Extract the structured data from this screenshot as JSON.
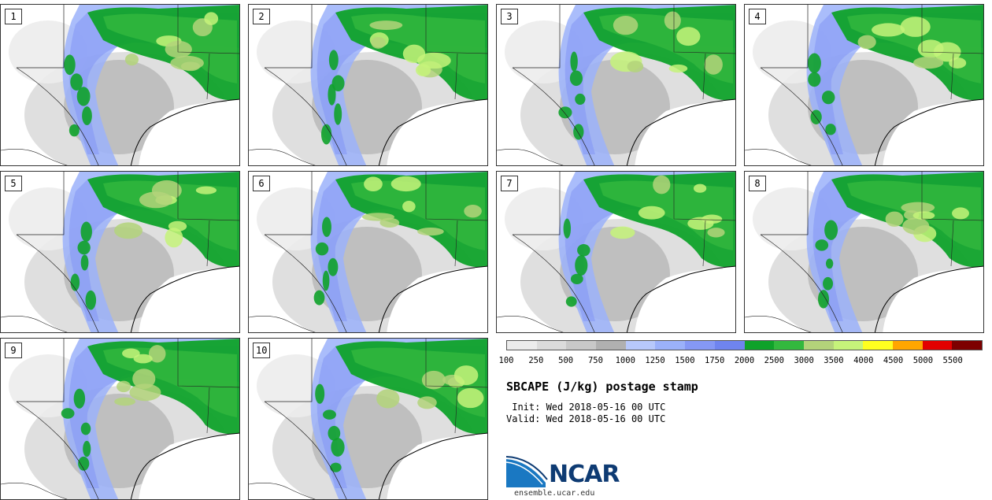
{
  "panels": [
    "1",
    "2",
    "3",
    "4",
    "5",
    "6",
    "7",
    "8",
    "9",
    "10"
  ],
  "colorbar": {
    "colors": [
      "#ececec",
      "#dbdbdb",
      "#c8c8c8",
      "#b0b0b0",
      "#b7c8fb",
      "#9bb1fa",
      "#8598f5",
      "#6f84ef",
      "#0fa22a",
      "#33b83e",
      "#b3d37a",
      "#c6f37a",
      "#ffff20",
      "#ffa600",
      "#e20000",
      "#7d0000"
    ],
    "ticks": [
      "100",
      "250",
      "500",
      "750",
      "1000",
      "1250",
      "1500",
      "1750",
      "2000",
      "2500",
      "3000",
      "3500",
      "4000",
      "4500",
      "5000",
      "5500"
    ]
  },
  "title": "SBCAPE (J/kg) postage stamp",
  "init": " Init: Wed 2018-05-16 00 UTC",
  "valid": "Valid: Wed 2018-05-16 00 UTC",
  "logo_text": "NCAR",
  "website": "ensemble.ucar.edu"
}
